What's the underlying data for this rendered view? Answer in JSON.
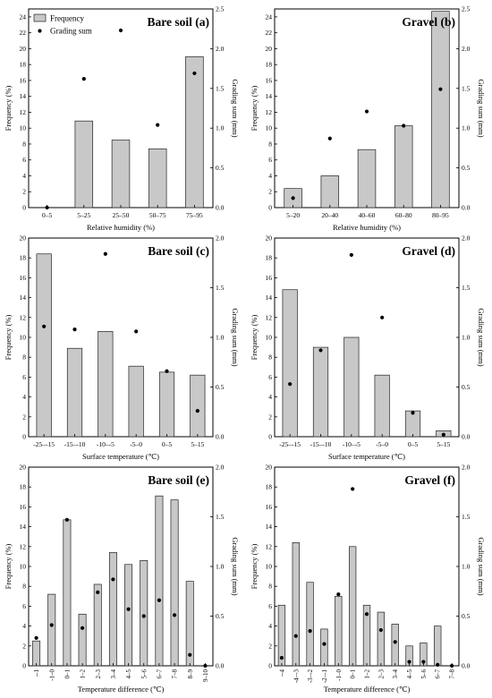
{
  "chart_data": [
    {
      "id": "a",
      "type": "bar",
      "title": "Bare soil (a)",
      "xlabel": "Relative humidity (%)",
      "ylabel": "Frequency (%)",
      "y2label": "Grading sum (mm)",
      "legend": {
        "position": "top-left",
        "bar": "Frequency",
        "dot": "Grading sum"
      },
      "categories": [
        "0–5",
        "5–25",
        "25–50",
        "50–75",
        "75–95"
      ],
      "series": [
        {
          "name": "Frequency",
          "axis": "left",
          "values": [
            0,
            10.9,
            8.5,
            7.4,
            19
          ]
        },
        {
          "name": "Grading sum",
          "axis": "right",
          "values": [
            0,
            1.62,
            2.23,
            1.04,
            1.69
          ]
        }
      ],
      "ylim": [
        0,
        25
      ],
      "yticks": [
        "0",
        "2",
        "4",
        "6",
        "8",
        "10",
        "12",
        "14",
        "16",
        "18",
        "20",
        "22",
        "24"
      ],
      "y2lim": [
        0,
        2.5
      ],
      "y2ticks": [
        "0.0",
        "0.5",
        "1.0",
        "1.5",
        "2.0",
        "2.5"
      ],
      "xtick_rotated": false
    },
    {
      "id": "b",
      "type": "bar",
      "title": "Gravel (b)",
      "xlabel": "Relative humidity (%)",
      "ylabel": "Frequency (%)",
      "y2label": "Grading sum (mm)",
      "categories": [
        "5–20",
        "20–40",
        "40–60",
        "60–80",
        "80–95"
      ],
      "series": [
        {
          "name": "Frequency",
          "axis": "left",
          "values": [
            2.4,
            4.0,
            7.3,
            10.3,
            24.7
          ]
        },
        {
          "name": "Grading sum",
          "axis": "right",
          "values": [
            0.12,
            0.87,
            1.21,
            1.03,
            1.49
          ]
        }
      ],
      "ylim": [
        0,
        25
      ],
      "yticks": [
        "0",
        "2",
        "4",
        "6",
        "8",
        "10",
        "12",
        "14",
        "16",
        "18",
        "20",
        "22",
        "24"
      ],
      "y2lim": [
        0,
        2.5
      ],
      "y2ticks": [
        "0.0",
        "0.5",
        "1.0",
        "1.5",
        "2.0",
        "2.5"
      ],
      "xtick_rotated": false
    },
    {
      "id": "c",
      "type": "bar",
      "title": "Bare soil (c)",
      "xlabel": "Surface temperature (℃)",
      "ylabel": "Frequency (%)",
      "y2label": "Grading sum (mm)",
      "categories": [
        "-25–-15",
        "-15–-10",
        "-10–-5",
        "-5–0",
        "0–5",
        "5–15"
      ],
      "series": [
        {
          "name": "Frequency",
          "axis": "left",
          "values": [
            18.4,
            8.9,
            10.6,
            7.1,
            6.5,
            6.2
          ]
        },
        {
          "name": "Grading sum",
          "axis": "right",
          "values": [
            1.11,
            1.08,
            1.84,
            1.06,
            0.66,
            0.26
          ]
        }
      ],
      "ylim": [
        0,
        20
      ],
      "yticks": [
        "0",
        "2",
        "4",
        "6",
        "8",
        "10",
        "12",
        "14",
        "16",
        "18",
        "20"
      ],
      "y2lim": [
        0,
        2.0
      ],
      "y2ticks": [
        "0.0",
        "0.5",
        "1.0",
        "1.5",
        "2.0"
      ],
      "xtick_rotated": false
    },
    {
      "id": "d",
      "type": "bar",
      "title": "Gravel (d)",
      "xlabel": "Surface temperature (℃)",
      "ylabel": "Frequency (%)",
      "y2label": "Grading sum (mm)",
      "categories": [
        "-25–-15",
        "-15–-10",
        "-10–-5",
        "-5–0",
        "0–5",
        "5–15"
      ],
      "series": [
        {
          "name": "Frequency",
          "axis": "left",
          "values": [
            14.8,
            9.0,
            10.0,
            6.2,
            2.6,
            0.6
          ]
        },
        {
          "name": "Grading sum",
          "axis": "right",
          "values": [
            0.53,
            0.87,
            1.83,
            1.2,
            0.24,
            0.02
          ]
        }
      ],
      "ylim": [
        0,
        20
      ],
      "yticks": [
        "0",
        "2",
        "4",
        "6",
        "8",
        "10",
        "12",
        "14",
        "16",
        "18",
        "20"
      ],
      "y2lim": [
        0,
        2.0
      ],
      "y2ticks": [
        "0.0",
        "0.5",
        "1.0",
        "1.5",
        "2.0"
      ],
      "xtick_rotated": false
    },
    {
      "id": "e",
      "type": "bar",
      "title": "Bare soil (e)",
      "xlabel": "Temperature difference (℃)",
      "ylabel": "Frequency (%)",
      "y2label": "Grading sum (mm)",
      "categories": [
        "--1",
        "-1–0",
        "0–1",
        "1–2",
        "2–3",
        "3–4",
        "4–5",
        "5–6",
        "6–7",
        "7–8",
        "8–9",
        "9–10"
      ],
      "series": [
        {
          "name": "Frequency",
          "axis": "left",
          "values": [
            2.5,
            7.2,
            14.7,
            5.2,
            8.2,
            11.4,
            10.2,
            10.6,
            17.1,
            16.7,
            8.5,
            0
          ]
        },
        {
          "name": "Grading sum",
          "axis": "right",
          "values": [
            0.28,
            0.41,
            1.47,
            0.38,
            0.74,
            0.87,
            0.57,
            0.5,
            0.66,
            0.51,
            0.11,
            0.0
          ]
        }
      ],
      "ylim": [
        0,
        20
      ],
      "yticks": [
        "0",
        "2",
        "4",
        "6",
        "8",
        "10",
        "12",
        "14",
        "16",
        "18",
        "20"
      ],
      "y2lim": [
        0,
        2.0
      ],
      "y2ticks": [
        "0.0",
        "0.5",
        "1.0",
        "1.5",
        "2.0"
      ],
      "xtick_rotated": true
    },
    {
      "id": "f",
      "type": "bar",
      "title": "Gravel (f)",
      "xlabel": "Temperature difference (℃)",
      "ylabel": "Frequency (%)",
      "y2label": "Grading sum (mm)",
      "categories": [
        "--4",
        "-4–-3",
        "-3–-2",
        "-2–-1",
        "-1–0",
        "0–1",
        "1–2",
        "2–3",
        "3–4",
        "4–5",
        "5–6",
        "6–7",
        "7–8"
      ],
      "series": [
        {
          "name": "Frequency",
          "axis": "left",
          "values": [
            6.1,
            12.4,
            8.4,
            3.7,
            7.0,
            12.0,
            6.1,
            5.4,
            4.2,
            2.0,
            2.3,
            4.0,
            0
          ]
        },
        {
          "name": "Grading sum",
          "axis": "right",
          "values": [
            0.08,
            0.3,
            0.35,
            0.22,
            0.72,
            1.78,
            0.52,
            0.36,
            0.24,
            0.04,
            0.04,
            0.01,
            0.0
          ]
        }
      ],
      "ylim": [
        0,
        20
      ],
      "yticks": [
        "0",
        "2",
        "4",
        "6",
        "8",
        "10",
        "12",
        "14",
        "16",
        "18",
        "20"
      ],
      "y2lim": [
        0,
        2.0
      ],
      "y2ticks": [
        "0.0",
        "0.5",
        "1.0",
        "1.5",
        "2.0"
      ],
      "xtick_rotated": true
    }
  ],
  "colors": {
    "bar_fill": "#c8c8c8",
    "bar_stroke": "#222222",
    "dot": "#000000",
    "axis": "#000000"
  }
}
